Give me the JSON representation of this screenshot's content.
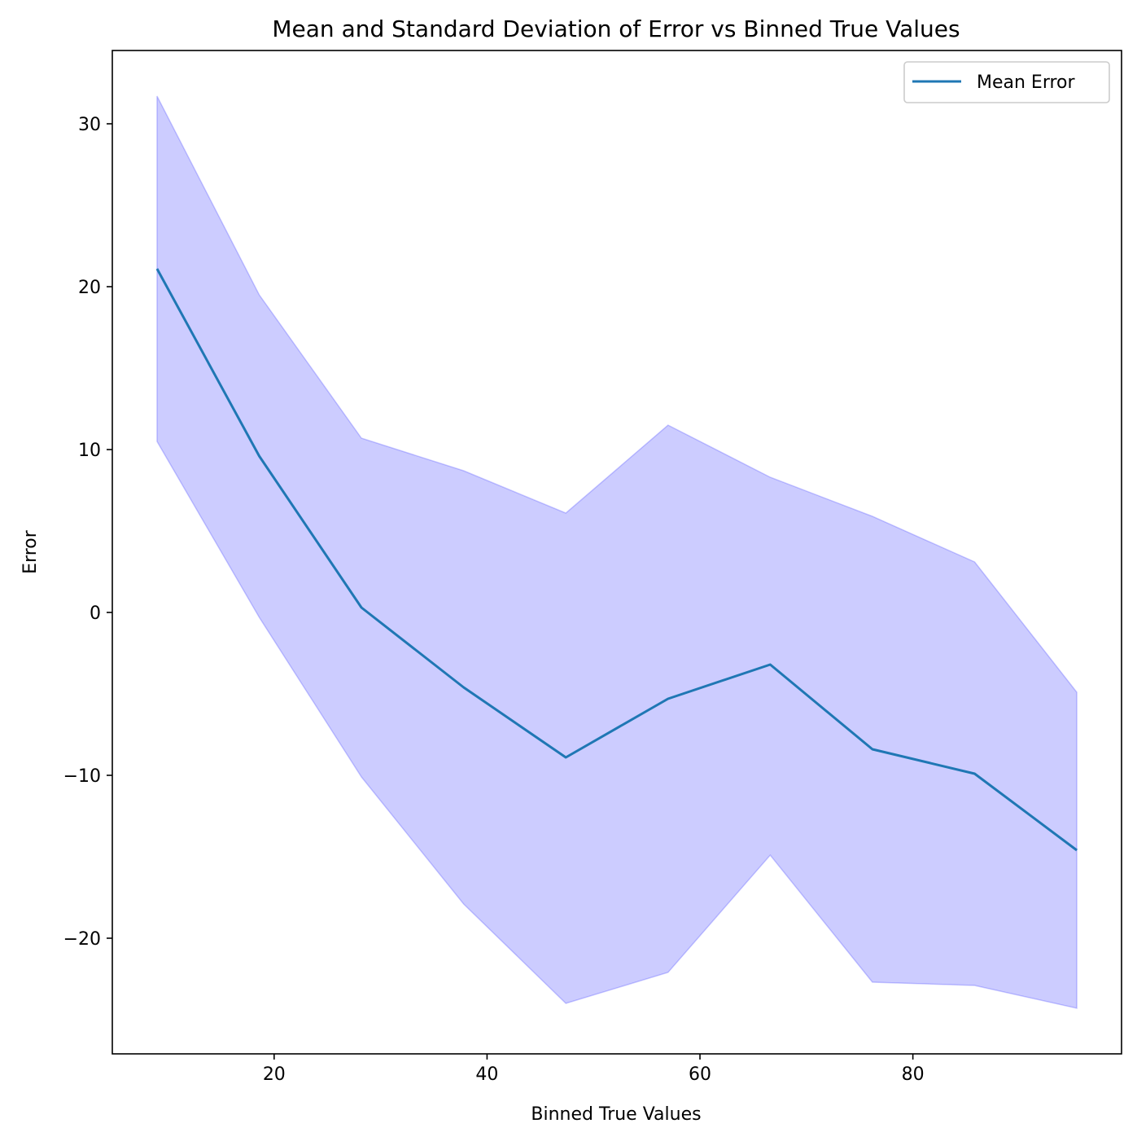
{
  "chart_data": {
    "type": "line",
    "title": "Mean and Standard Deviation of Error vs Binned True Values",
    "xlabel": "Binned True Values",
    "ylabel": "Error",
    "xlim": [
      4.8,
      99.6
    ],
    "ylim": [
      -27.1,
      34.5
    ],
    "xticks": [
      20,
      40,
      60,
      80
    ],
    "yticks": [
      -20,
      -10,
      0,
      10,
      20,
      30
    ],
    "xtick_labels": [
      "20",
      "40",
      "60",
      "80"
    ],
    "ytick_labels": [
      "−20",
      "−10",
      "0",
      "10",
      "20",
      "30"
    ],
    "grid": false,
    "legend": {
      "position": "top-right",
      "entries": [
        "Mean Error"
      ]
    },
    "x": [
      9.0,
      18.6,
      28.2,
      37.8,
      47.4,
      57.0,
      66.6,
      76.2,
      85.8,
      95.4
    ],
    "series": [
      {
        "name": "Mean Error",
        "color": "#1f77b4",
        "values": [
          21.1,
          9.6,
          0.3,
          -4.6,
          -8.9,
          -5.3,
          -3.2,
          -8.4,
          -9.9,
          -14.6
        ]
      }
    ],
    "band": {
      "color": "#0000ff",
      "opacity": 0.2,
      "upper": [
        31.7,
        19.5,
        10.7,
        8.7,
        6.1,
        11.5,
        8.3,
        5.9,
        3.1,
        -4.9
      ],
      "lower": [
        10.5,
        -0.3,
        -10.1,
        -17.9,
        -24.0,
        -22.1,
        -14.9,
        -22.7,
        -22.9,
        -24.3
      ]
    }
  }
}
